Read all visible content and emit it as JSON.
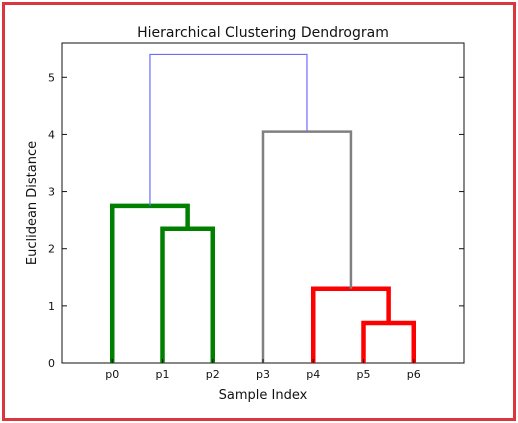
{
  "frame_color": "#d9363e",
  "chart_data": {
    "type": "dendrogram",
    "title": "Hierarchical Clustering Dendrogram",
    "xlabel": "Sample Index",
    "ylabel": "Euclidean Distance",
    "leaves": [
      "p0",
      "p1",
      "p2",
      "p3",
      "p4",
      "p5",
      "p6"
    ],
    "ylim": [
      0,
      5.6
    ],
    "yticks": [
      0,
      1,
      2,
      3,
      4,
      5
    ],
    "grid": false,
    "links": [
      {
        "left": "p5",
        "right": "p6",
        "height": 0.7,
        "color": "#ff0000",
        "cluster": "red"
      },
      {
        "left": "p4",
        "right": "(p5,p6)",
        "height": 1.3,
        "color": "#ff0000",
        "cluster": "red"
      },
      {
        "left": "p3",
        "right": "(p4,p5,p6)",
        "height": 4.05,
        "color": "#808080",
        "cluster": "grey"
      },
      {
        "left": "p1",
        "right": "p2",
        "height": 2.35,
        "color": "#008000",
        "cluster": "green"
      },
      {
        "left": "p0",
        "right": "(p1,p2)",
        "height": 2.75,
        "color": "#008000",
        "cluster": "green"
      },
      {
        "left": "(p0,p1,p2)",
        "right": "(p3,p4,p5,p6)",
        "height": 5.4,
        "color": "#6b6bff",
        "cluster": "root"
      }
    ]
  }
}
